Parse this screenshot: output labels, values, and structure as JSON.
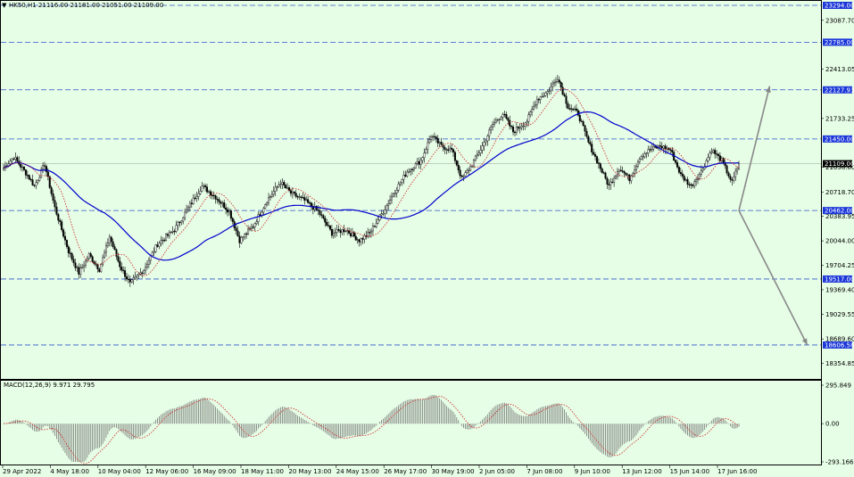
{
  "header": {
    "title": "HK50,H1  21116.00 21181.00 21051.00 21109.00",
    "macd_label": "MACD(12,26,9) 9.971 29.795"
  },
  "colors": {
    "background": "#e6fde6",
    "bull": "#000000",
    "bear": "#000000",
    "ma_slow": "#0000cc",
    "ma_fast": "#cc2222",
    "level_line": "#3355cc",
    "level_label_bg": "#1a36d9",
    "current_label_bg": "#000000",
    "arrow": "#888888",
    "macd_hist": "#777777",
    "macd_signal": "#cc2222"
  },
  "chart_data": [
    {
      "type": "candlestick",
      "title": "HK50,H1",
      "ohlc_last": {
        "open": 21116.0,
        "high": 21181.0,
        "low": 21051.0,
        "close": 21109.0
      },
      "ylim": [
        18180,
        23294
      ],
      "y_ticks": [
        23087.7,
        22413.05,
        21733.25,
        21058.6,
        20718.7,
        20383.95,
        20044.0,
        19704.25,
        19369.4,
        19029.55,
        18689.6,
        18354.85
      ],
      "x_ticks": [
        "29 Apr 2022",
        "4 May 18:00",
        "10 May 04:00",
        "12 May 06:00",
        "16 May 09:00",
        "18 May 11:00",
        "20 May 13:00",
        "24 May 15:00",
        "26 May 17:00",
        "30 May 19:00",
        "2 Jun 05:00",
        "7 Jun 08:00",
        "9 Jun 10:00",
        "13 Jun 12:00",
        "15 Jun 14:00",
        "17 Jun 16:00"
      ],
      "levels": [
        23294.0,
        22785.0,
        22127.93,
        21450.0,
        20462.0,
        19517.0,
        18606.58
      ],
      "level_labels": [
        "23294.00",
        "22785.00",
        "22127.93",
        "21450.00",
        "20462.00",
        "19517.00",
        "18606.58"
      ],
      "current_price": 21109.0,
      "current_label": "21109.00",
      "anchors": [
        [
          0,
          21050
        ],
        [
          6,
          21200
        ],
        [
          14,
          20950
        ],
        [
          18,
          20800
        ],
        [
          24,
          21100
        ],
        [
          30,
          20500
        ],
        [
          38,
          19900
        ],
        [
          44,
          19600
        ],
        [
          50,
          19850
        ],
        [
          56,
          19650
        ],
        [
          62,
          20100
        ],
        [
          68,
          19700
        ],
        [
          74,
          19450
        ],
        [
          82,
          19650
        ],
        [
          90,
          20000
        ],
        [
          100,
          20200
        ],
        [
          108,
          20500
        ],
        [
          116,
          20800
        ],
        [
          124,
          20650
        ],
        [
          132,
          20450
        ],
        [
          138,
          20050
        ],
        [
          146,
          20250
        ],
        [
          154,
          20600
        ],
        [
          162,
          20850
        ],
        [
          168,
          20700
        ],
        [
          176,
          20600
        ],
        [
          184,
          20450
        ],
        [
          192,
          20150
        ],
        [
          200,
          20200
        ],
        [
          208,
          20050
        ],
        [
          214,
          20150
        ],
        [
          222,
          20450
        ],
        [
          228,
          20700
        ],
        [
          236,
          21000
        ],
        [
          244,
          21150
        ],
        [
          250,
          21500
        ],
        [
          256,
          21350
        ],
        [
          262,
          21300
        ],
        [
          268,
          20900
        ],
        [
          274,
          21100
        ],
        [
          280,
          21350
        ],
        [
          286,
          21650
        ],
        [
          292,
          21800
        ],
        [
          298,
          21550
        ],
        [
          306,
          21700
        ],
        [
          312,
          22000
        ],
        [
          318,
          22100
        ],
        [
          324,
          22300
        ],
        [
          330,
          21900
        ],
        [
          336,
          21800
        ],
        [
          342,
          21400
        ],
        [
          348,
          21100
        ],
        [
          354,
          20800
        ],
        [
          360,
          21050
        ],
        [
          366,
          20900
        ],
        [
          372,
          21200
        ],
        [
          378,
          21300
        ],
        [
          384,
          21350
        ],
        [
          390,
          21300
        ],
        [
          396,
          20950
        ],
        [
          402,
          20800
        ],
        [
          408,
          21000
        ],
        [
          414,
          21300
        ],
        [
          420,
          21150
        ],
        [
          426,
          20850
        ],
        [
          430,
          21109
        ]
      ],
      "ma_fast_lag": 14,
      "ma_slow_lag": 60,
      "arrows": [
        {
          "from": [
            430,
            20462
          ],
          "to": [
            448,
            22180
          ]
        },
        {
          "from": [
            430,
            20462
          ],
          "to": [
            470,
            18606.58
          ]
        }
      ]
    },
    {
      "type": "bar",
      "title": "MACD(12,26,9)",
      "series": [
        {
          "name": "",
          "values_source": "computed from price series"
        }
      ],
      "ylim": [
        -293.166,
        295.849
      ],
      "y_ticks": [
        295.849,
        0.0,
        -293.166
      ],
      "y_tick_labels": [
        "295.849",
        "0.00",
        "-293.166"
      ]
    }
  ]
}
